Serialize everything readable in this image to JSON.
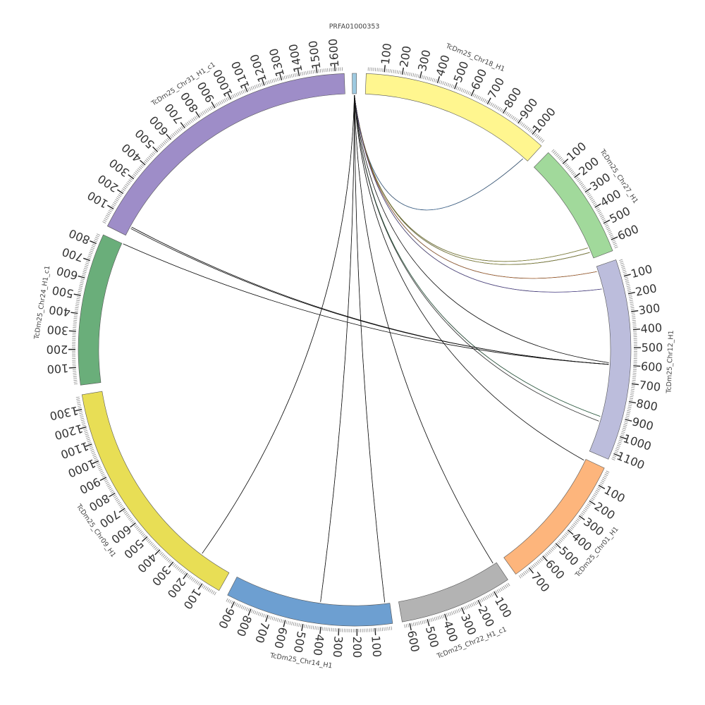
{
  "chart_data": {
    "type": "circos",
    "segments": [
      {
        "name": "PRFA01000353",
        "length": 15,
        "color": "#9ecae1",
        "label_step": 0
      },
      {
        "name": "TcDm25_Chr18_H1",
        "length": 1080,
        "color": "#fff68f",
        "label_step": 100
      },
      {
        "name": "TcDm25_Chr27_H1",
        "length": 660,
        "color": "#a1d99b",
        "label_step": 100
      },
      {
        "name": "TcDm25_Chr12_H1",
        "length": 1140,
        "color": "#bcbddc",
        "label_step": 100
      },
      {
        "name": "TcDm25_Chr01_H1",
        "length": 780,
        "color": "#fdb57c",
        "label_step": 100
      },
      {
        "name": "TcDm25_Chr22_H1_c1",
        "length": 640,
        "color": "#b3b3b3",
        "label_step": 100
      },
      {
        "name": "TcDm25_Chr14_H1",
        "length": 950,
        "color": "#6d9fd1",
        "label_step": 100
      },
      {
        "name": "TcDm25_Chr09_H1",
        "length": 1380,
        "color": "#e8de55",
        "label_step": 100
      },
      {
        "name": "TcDm25_Chr24_H1_c1",
        "length": 860,
        "color": "#6aae7a",
        "label_step": 100
      },
      {
        "name": "TcDm25_Chr31_H1_c1",
        "length": 1650,
        "color": "#9e8dc8",
        "label_step": 100
      }
    ],
    "links": [
      {
        "from": "PRFA01000353",
        "to": "TcDm25_Chr18_H1",
        "to_pos": 1050,
        "color": "#4a90d9"
      },
      {
        "from": "PRFA01000353",
        "to": "TcDm25_Chr27_H1",
        "to_pos": 590,
        "color": "#c8c84a"
      },
      {
        "from": "PRFA01000353",
        "to": "TcDm25_Chr27_H1",
        "to_pos": 620,
        "color": "#c8c84a"
      },
      {
        "from": "PRFA01000353",
        "to": "TcDm25_Chr12_H1",
        "to_pos": 30,
        "color": "#f07f2e"
      },
      {
        "from": "PRFA01000353",
        "to": "TcDm25_Chr12_H1",
        "to_pos": 140,
        "color": "#6a5acd"
      },
      {
        "from": "PRFA01000353",
        "to": "TcDm25_Chr12_H1",
        "to_pos": 590,
        "color": "#111111"
      },
      {
        "from": "PRFA01000353",
        "to": "TcDm25_Chr12_H1",
        "to_pos": 920,
        "color": "#2e8b57"
      },
      {
        "from": "PRFA01000353",
        "to": "TcDm25_Chr12_H1",
        "to_pos": 950,
        "color": "#555555"
      },
      {
        "from": "PRFA01000353",
        "to": "TcDm25_Chr01_H1",
        "to_pos": 10,
        "color": "#111111"
      },
      {
        "from": "PRFA01000353",
        "to": "TcDm25_Chr22_H1_c1",
        "to_pos": 20,
        "color": "#111111"
      },
      {
        "from": "PRFA01000353",
        "to": "TcDm25_Chr14_H1",
        "to_pos": 30,
        "color": "#111111"
      },
      {
        "from": "PRFA01000353",
        "to": "TcDm25_Chr14_H1",
        "to_pos": 420,
        "color": "#111111"
      },
      {
        "from": "PRFA01000353",
        "to": "TcDm25_Chr09_H1",
        "to_pos": 200,
        "color": "#111111"
      },
      {
        "from": "TcDm25_Chr24_H1_c1",
        "from_pos": 860,
        "to": "TcDm25_Chr12_H1",
        "to_pos": 600,
        "color": "#111111"
      },
      {
        "from": "TcDm25_Chr31_H1_c1",
        "from_pos": 50,
        "to": "TcDm25_Chr12_H1",
        "to_pos": 600,
        "color": "#111111"
      },
      {
        "from": "TcDm25_Chr31_H1_c1",
        "from_pos": 60,
        "to": "TcDm25_Chr12_H1",
        "to_pos": 600,
        "color": "#111111"
      }
    ]
  }
}
